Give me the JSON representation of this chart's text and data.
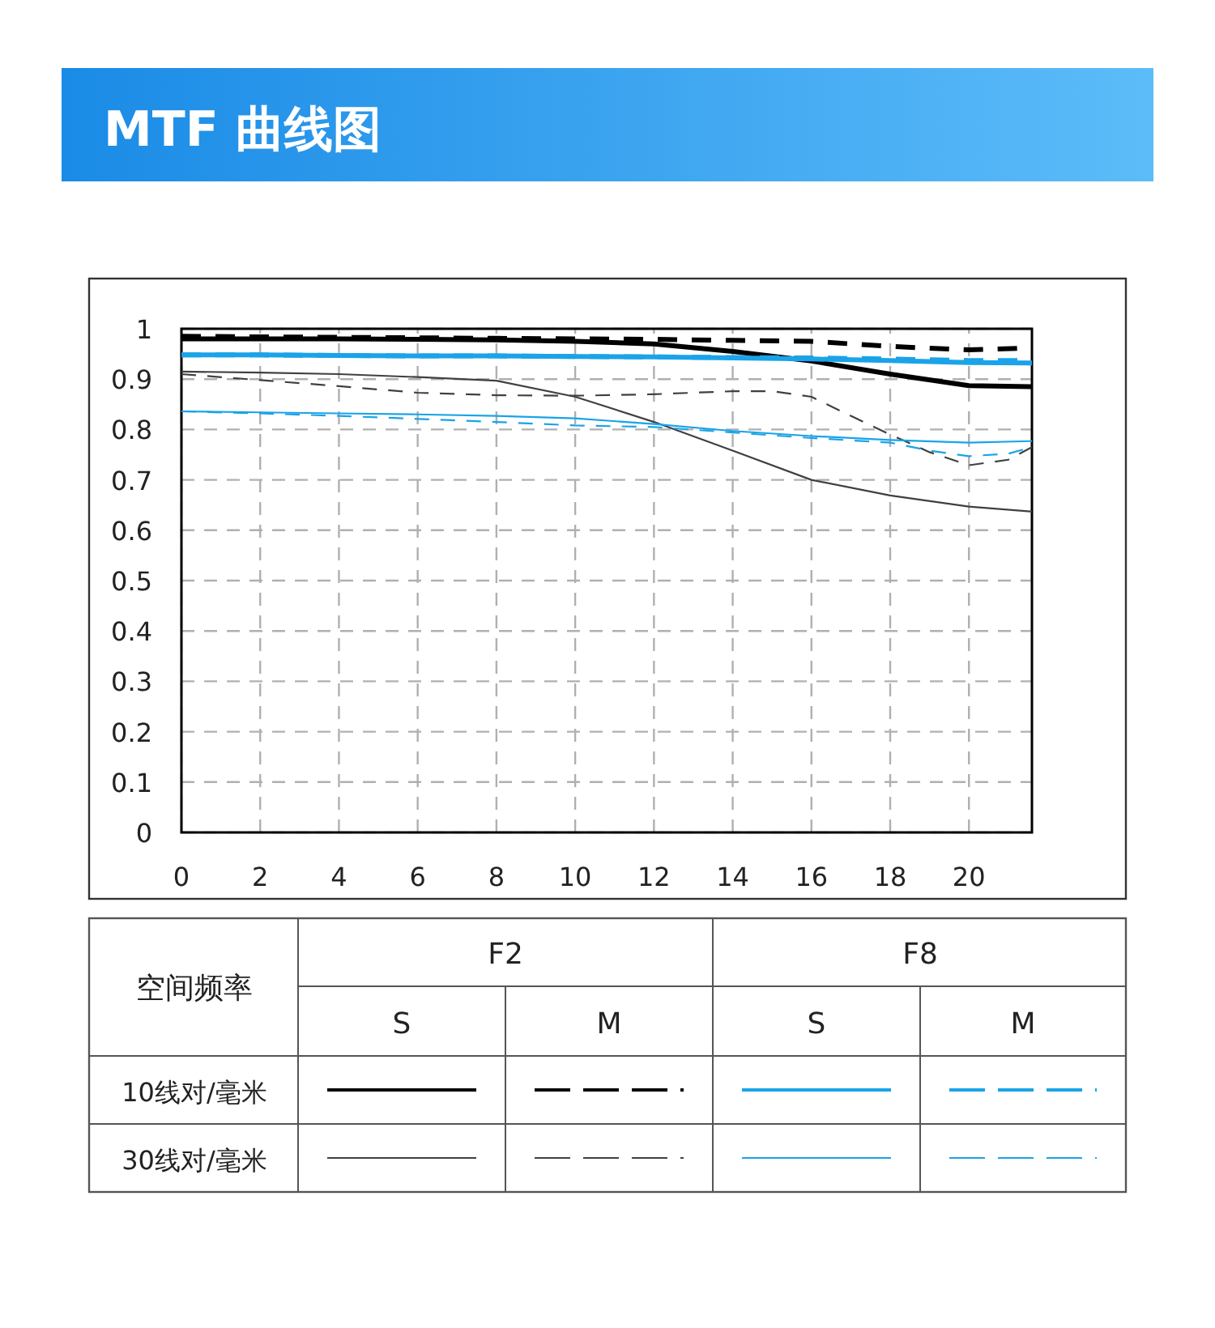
{
  "chart_data": {
    "type": "line",
    "title": "MTF 曲线图",
    "x": [
      0,
      2,
      4,
      6,
      8,
      10,
      12,
      14,
      16,
      18,
      20,
      21.6
    ],
    "series": [
      {
        "color": "#000000",
        "line_style": "solid",
        "values": [
          0.98,
          0.98,
          0.98,
          0.979,
          0.978,
          0.975,
          0.97,
          0.955,
          0.936,
          0.91,
          0.887,
          0.885
        ]
      },
      {
        "color": "#000000",
        "line_style": "dashed",
        "values": [
          0.985,
          0.984,
          0.983,
          0.982,
          0.981,
          0.98,
          0.979,
          0.977,
          0.975,
          0.965,
          0.958,
          0.962
        ]
      },
      {
        "color": "#1aa3e8",
        "line_style": "solid",
        "values": [
          0.948,
          0.948,
          0.947,
          0.946,
          0.946,
          0.945,
          0.944,
          0.942,
          0.94,
          0.937,
          0.933,
          0.932
        ]
      },
      {
        "color": "#1aa3e8",
        "line_style": "dashed",
        "values": [
          0.948,
          0.948,
          0.947,
          0.946,
          0.946,
          0.945,
          0.944,
          0.943,
          0.942,
          0.94,
          0.937,
          0.937
        ]
      },
      {
        "color": "#404040",
        "line_style": "solid",
        "values": [
          0.915,
          0.913,
          0.91,
          0.904,
          0.897,
          0.865,
          0.815,
          0.758,
          0.7,
          0.669,
          0.647,
          0.637
        ]
      },
      {
        "color": "#404040",
        "line_style": "dashed",
        "x": [
          0,
          2,
          4,
          6,
          8,
          10,
          12,
          14,
          15,
          16,
          17,
          18,
          19,
          20,
          21,
          21.6
        ],
        "values": [
          0.91,
          0.898,
          0.886,
          0.873,
          0.868,
          0.867,
          0.87,
          0.876,
          0.876,
          0.865,
          0.827,
          0.79,
          0.755,
          0.729,
          0.74,
          0.765
        ]
      },
      {
        "color": "#1aa3e8",
        "line_style": "solid",
        "values": [
          0.836,
          0.834,
          0.832,
          0.83,
          0.827,
          0.822,
          0.811,
          0.797,
          0.787,
          0.779,
          0.774,
          0.777
        ]
      },
      {
        "color": "#1aa3e8",
        "line_style": "dashed",
        "x": [
          0,
          2,
          4,
          6,
          8,
          10,
          12,
          14,
          16,
          18,
          19,
          20,
          21,
          21.6
        ],
        "values": [
          0.836,
          0.832,
          0.827,
          0.821,
          0.815,
          0.808,
          0.805,
          0.794,
          0.783,
          0.774,
          0.758,
          0.747,
          0.752,
          0.765
        ]
      }
    ],
    "xlim": [
      0,
      21.6
    ],
    "xticks": [
      0,
      2,
      4,
      6,
      8,
      10,
      12,
      14,
      16,
      18,
      20
    ],
    "ylim": [
      0,
      1
    ],
    "yticks": [
      0,
      0.1,
      0.2,
      0.3,
      0.4,
      0.5,
      0.6,
      0.7,
      0.8,
      0.9,
      1
    ],
    "grid": true,
    "annotations": [
      "空间频率",
      "F2",
      "F8",
      "S",
      "M",
      "S",
      "M",
      "10线对/毫米",
      "30线对/毫米"
    ]
  }
}
